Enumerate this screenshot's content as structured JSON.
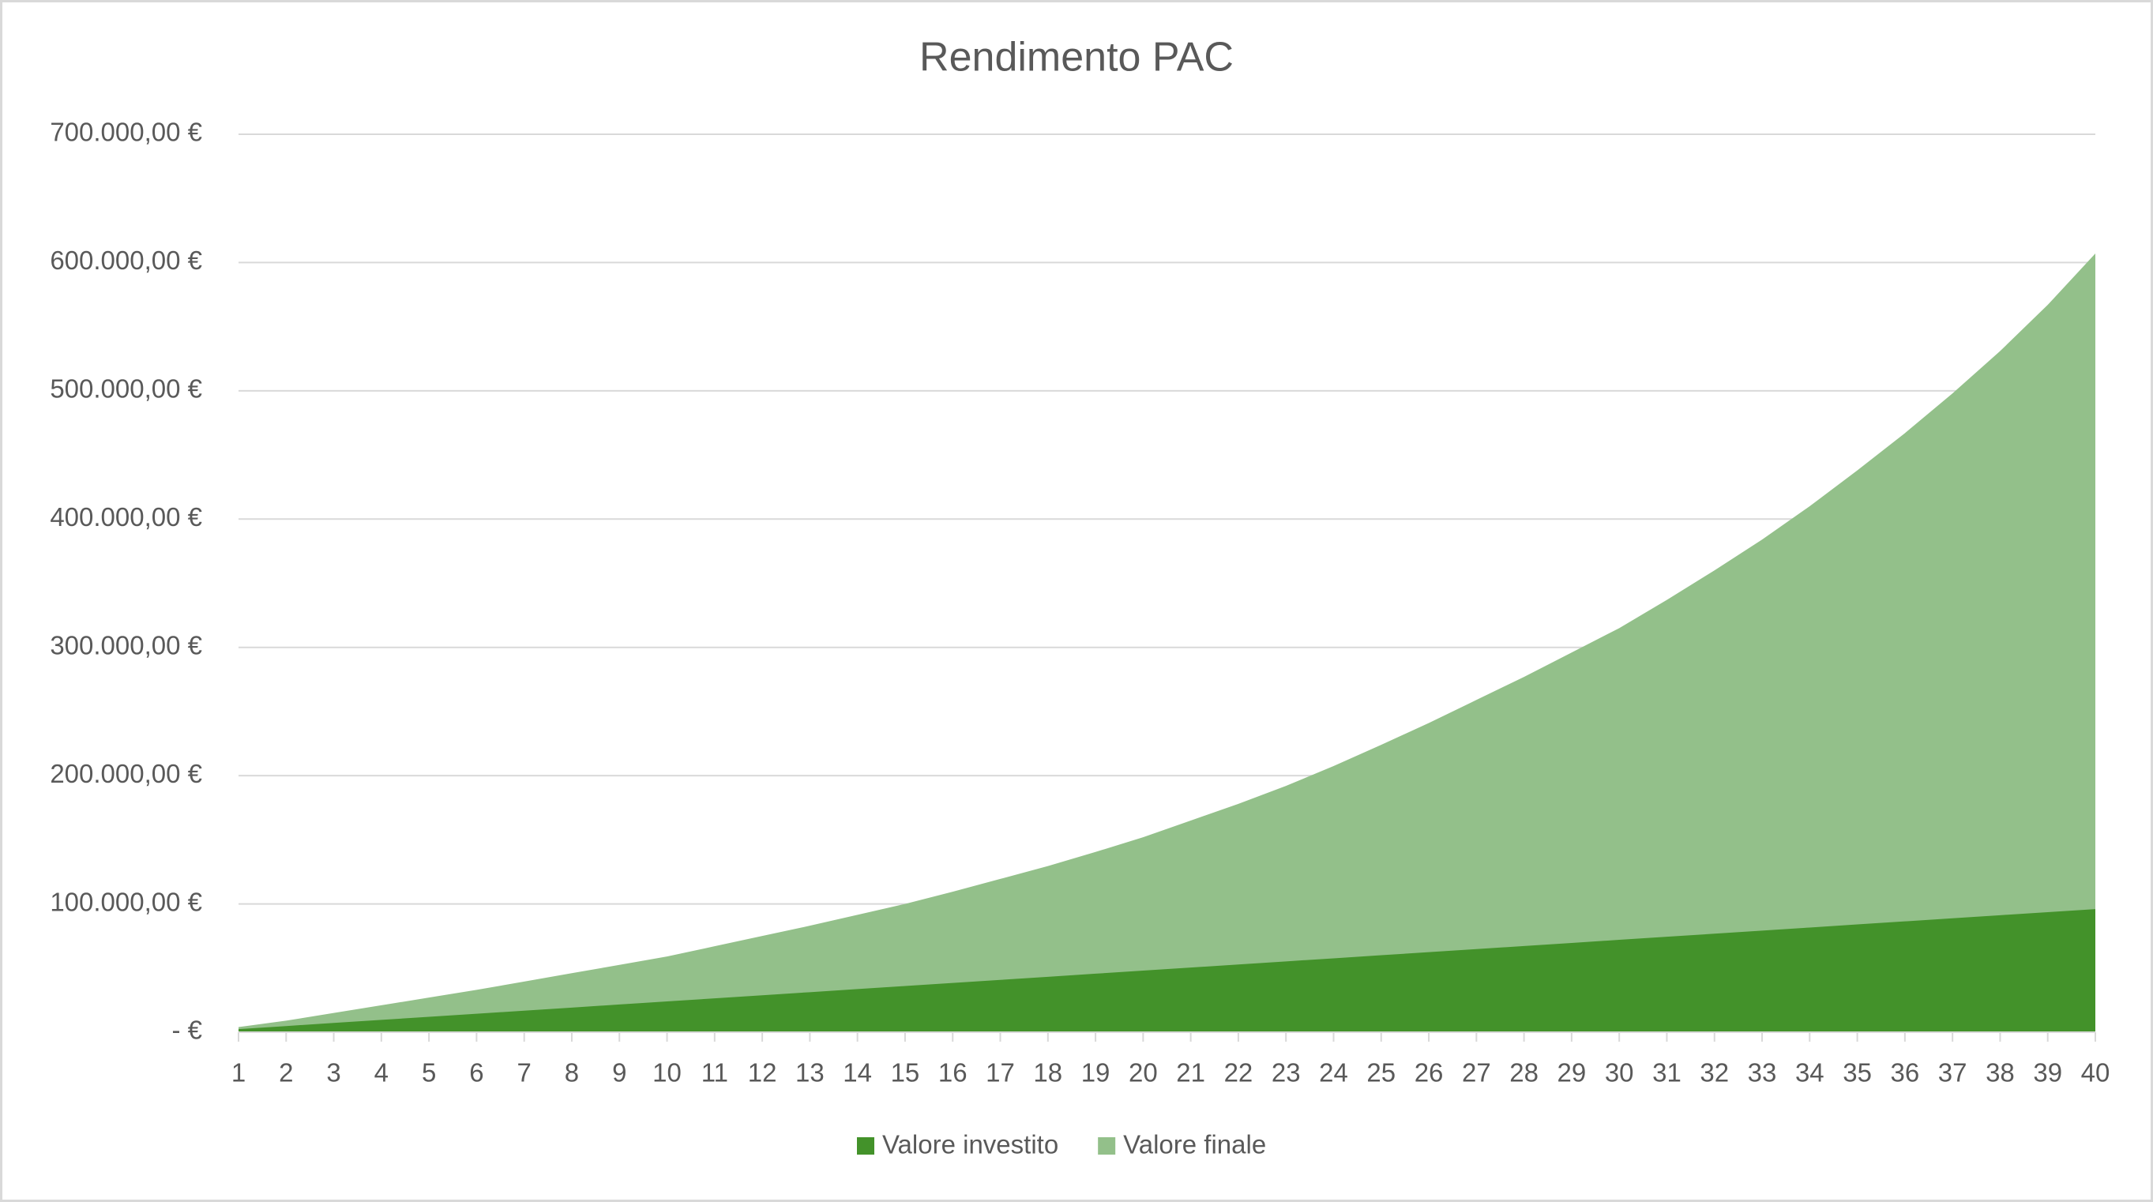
{
  "chart_data": {
    "type": "area",
    "title": "Rendimento PAC",
    "categories": [
      "1",
      "2",
      "3",
      "4",
      "5",
      "6",
      "7",
      "8",
      "9",
      "10",
      "11",
      "12",
      "13",
      "14",
      "15",
      "16",
      "17",
      "18",
      "19",
      "20",
      "21",
      "22",
      "23",
      "24",
      "25",
      "26",
      "27",
      "28",
      "29",
      "30",
      "31",
      "32",
      "33",
      "34",
      "35",
      "36",
      "37",
      "38",
      "39",
      "40"
    ],
    "series": [
      {
        "name": "Valore finale",
        "color": "#93c08a",
        "values": [
          4000,
          9000,
          15000,
          21000,
          27000,
          33000,
          39500,
          46000,
          52500,
          59000,
          67000,
          75000,
          83000,
          91500,
          100000,
          109500,
          119500,
          129500,
          140500,
          152000,
          165000,
          178000,
          192000,
          207500,
          224000,
          241000,
          259000,
          277000,
          296000,
          315000,
          337000,
          360000,
          384000,
          410000,
          438000,
          467000,
          498000,
          531000,
          567000,
          607000
        ]
      },
      {
        "name": "Valore investito",
        "color": "#43922a",
        "values": [
          2400,
          4800,
          7200,
          9600,
          12000,
          14400,
          16800,
          19200,
          21600,
          24000,
          26400,
          28800,
          31200,
          33600,
          36000,
          38400,
          40800,
          43200,
          45600,
          48000,
          50400,
          52800,
          55200,
          57600,
          60000,
          62400,
          64800,
          67200,
          69600,
          72000,
          74400,
          76800,
          79200,
          81600,
          84000,
          86400,
          88800,
          91200,
          93600,
          96000
        ]
      }
    ],
    "legend_order": [
      "Valore investito",
      "Valore finale"
    ],
    "ylim": [
      0,
      700000
    ],
    "yticks": [
      {
        "value": 0,
        "label": "-  €"
      },
      {
        "value": 100000,
        "label": "100.000,00 €"
      },
      {
        "value": 200000,
        "label": "200.000,00 €"
      },
      {
        "value": 300000,
        "label": "300.000,00 €"
      },
      {
        "value": 400000,
        "label": "400.000,00 €"
      },
      {
        "value": 500000,
        "label": "500.000,00 €"
      },
      {
        "value": 600000,
        "label": "600.000,00 €"
      },
      {
        "value": 700000,
        "label": "700.000,00 €"
      }
    ],
    "grid": true,
    "legend": "bottom"
  }
}
